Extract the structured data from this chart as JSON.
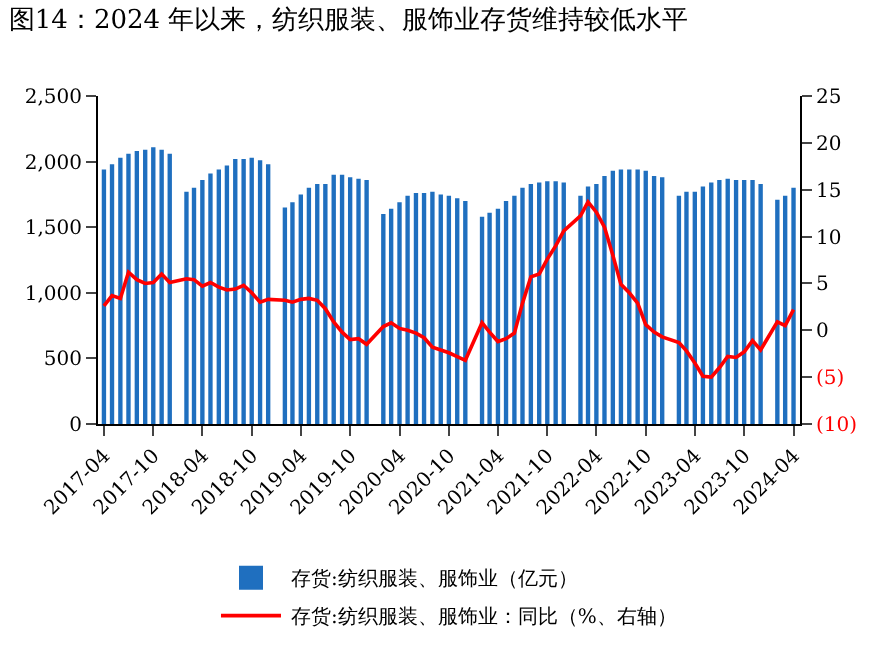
{
  "chart_data": {
    "type": "bar",
    "title": "图14：2024 年以来，纺织服装、服饰业存货维持较低水平",
    "x": [
      "2017-04",
      "2017-05",
      "2017-06",
      "2017-07",
      "2017-08",
      "2017-09",
      "2017-10",
      "2017-11",
      "2017-12",
      "2018-02",
      "2018-03",
      "2018-04",
      "2018-05",
      "2018-06",
      "2018-07",
      "2018-08",
      "2018-09",
      "2018-10",
      "2018-11",
      "2018-12",
      "2019-02",
      "2019-03",
      "2019-04",
      "2019-05",
      "2019-06",
      "2019-07",
      "2019-08",
      "2019-09",
      "2019-10",
      "2019-11",
      "2019-12",
      "2020-02",
      "2020-03",
      "2020-04",
      "2020-05",
      "2020-06",
      "2020-07",
      "2020-08",
      "2020-09",
      "2020-10",
      "2020-11",
      "2020-12",
      "2021-02",
      "2021-03",
      "2021-04",
      "2021-05",
      "2021-06",
      "2021-07",
      "2021-08",
      "2021-09",
      "2021-10",
      "2021-11",
      "2021-12",
      "2022-02",
      "2022-03",
      "2022-04",
      "2022-05",
      "2022-06",
      "2022-07",
      "2022-08",
      "2022-09",
      "2022-10",
      "2022-11",
      "2022-12",
      "2023-02",
      "2023-03",
      "2023-04",
      "2023-05",
      "2023-06",
      "2023-07",
      "2023-08",
      "2023-09",
      "2023-10",
      "2023-11",
      "2023-12",
      "2024-02",
      "2024-03",
      "2024-04"
    ],
    "series": [
      {
        "name": "存货:纺织服装、服饰业（亿元）",
        "color": "#1f6fbf",
        "values": [
          1940,
          1980,
          2030,
          2060,
          2080,
          2090,
          2110,
          2090,
          2060,
          1770,
          1800,
          1860,
          1910,
          1940,
          1970,
          2020,
          2020,
          2030,
          2010,
          1980,
          1650,
          1690,
          1750,
          1800,
          1830,
          1830,
          1900,
          1900,
          1880,
          1870,
          1860,
          1600,
          1640,
          1690,
          1740,
          1760,
          1760,
          1770,
          1750,
          1740,
          1720,
          1700,
          1580,
          1610,
          1640,
          1700,
          1740,
          1800,
          1830,
          1840,
          1850,
          1850,
          1840,
          1740,
          1810,
          1830,
          1890,
          1930,
          1940,
          1940,
          1940,
          1930,
          1890,
          1880,
          1740,
          1770,
          1770,
          1810,
          1840,
          1860,
          1870,
          1860,
          1860,
          1860,
          1830,
          1710,
          1740,
          1800
        ]
      },
      {
        "name": "存货:纺织服装、服饰业：同比（%、右轴）",
        "type": "line",
        "axis": "y2",
        "color": "#ff0000",
        "values": [
          2.6,
          3.7,
          3.4,
          6.2,
          5.4,
          5.0,
          5.1,
          6.0,
          5.1,
          5.5,
          5.4,
          4.7,
          5.1,
          4.6,
          4.3,
          4.4,
          4.8,
          4.0,
          3.0,
          3.3,
          3.2,
          3.0,
          3.3,
          3.4,
          3.2,
          2.3,
          0.9,
          -0.2,
          -1.0,
          -0.9,
          -1.5,
          0.4,
          0.8,
          0.2,
          0.0,
          -0.3,
          -0.8,
          -1.8,
          -2.1,
          -2.4,
          -2.8,
          -3.2,
          0.8,
          -0.2,
          -1.2,
          -0.9,
          -0.3,
          2.9,
          5.7,
          6.0,
          7.6,
          9.0,
          10.6,
          12.2,
          13.7,
          12.6,
          11.0,
          8.0,
          4.9,
          4.0,
          2.9,
          0.6,
          -0.2,
          -0.7,
          -1.3,
          -2.2,
          -3.5,
          -4.9,
          -5.0,
          -4.0,
          -2.8,
          -2.9,
          -2.3,
          -1.1,
          -2.1,
          0.9,
          0.5,
          2.2
        ]
      }
    ],
    "xlim": [
      "2017-03-10",
      "2024-04-25"
    ],
    "xticks": [
      "2017-04",
      "2017-10",
      "2018-04",
      "2018-10",
      "2019-04",
      "2019-10",
      "2020-04",
      "2020-10",
      "2021-04",
      "2021-10",
      "2022-04",
      "2022-10",
      "2023-04",
      "2023-10",
      "2024-04"
    ],
    "ylim": [
      0,
      2500
    ],
    "yticks": [
      {
        "value": 0,
        "label": "0"
      },
      {
        "value": 500,
        "label": "500"
      },
      {
        "value": 1000,
        "label": "1,000"
      },
      {
        "value": 1500,
        "label": "1,500"
      },
      {
        "value": 2000,
        "label": "2,000"
      },
      {
        "value": 2500,
        "label": "2,500"
      }
    ],
    "y2lim": [
      -10,
      25
    ],
    "y2ticks": [
      {
        "value": -10,
        "label": "(10)"
      },
      {
        "value": -5,
        "label": "(5)"
      },
      0,
      5,
      10,
      15,
      20,
      25
    ],
    "legend": "bottom"
  }
}
